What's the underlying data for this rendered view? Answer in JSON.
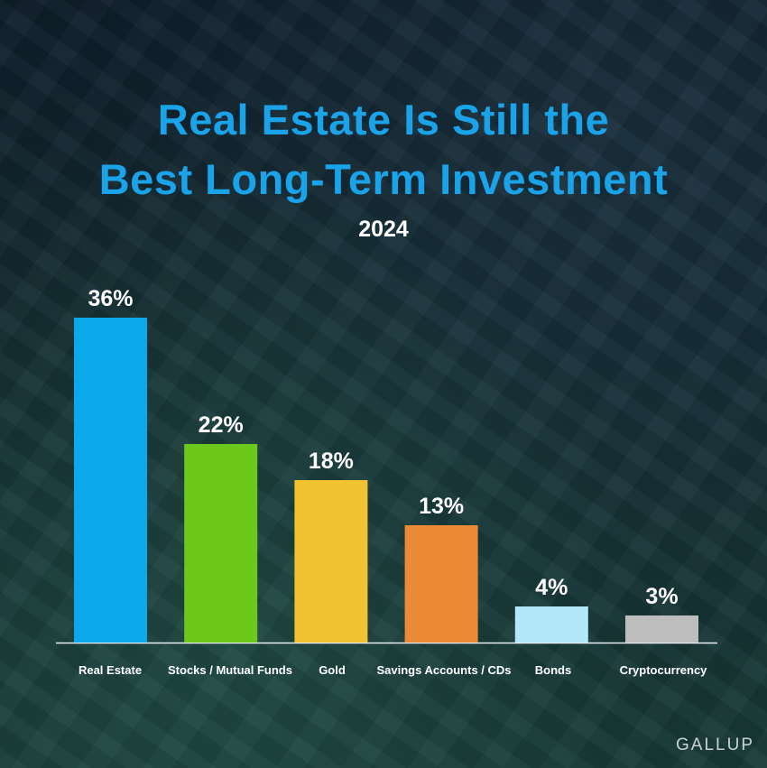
{
  "title_line1": "Real Estate Is Still the",
  "title_line2": "Best Long-Term Investment",
  "subtitle": "2024",
  "source": "GALLUP",
  "chart_data": {
    "type": "bar",
    "categories": [
      "Real Estate",
      "Stocks / Mutual Funds",
      "Gold",
      "Savings Accounts / CDs",
      "Bonds",
      "Cryptocurrency"
    ],
    "values": [
      36,
      22,
      18,
      13,
      4,
      3
    ],
    "value_labels": [
      "36%",
      "22%",
      "18%",
      "13%",
      "4%",
      "3%"
    ],
    "colors": [
      "#0ba8ea",
      "#6cc81b",
      "#f2c330",
      "#ec8a36",
      "#b3e8fb",
      "#bdbdbd"
    ],
    "title": "Real Estate Is Still the Best Long-Term Investment",
    "subtitle": "2024",
    "xlabel": "",
    "ylabel": "",
    "ylim": [
      0,
      36
    ],
    "grid": false,
    "legend": "none"
  }
}
